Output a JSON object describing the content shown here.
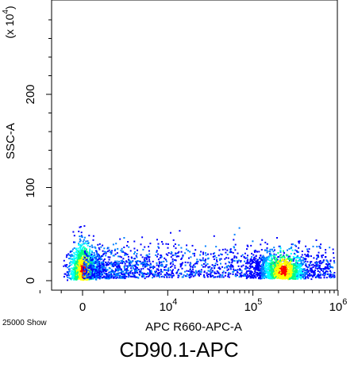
{
  "chart_data": {
    "type": "scatter",
    "subtype": "flow-cytometry-density-dot-plot",
    "title": "CD90.1-APC",
    "xlabel": "APC R660-APC-A",
    "ylabel": "SSC-A",
    "y_multiplier_label": "(x 10^4)",
    "event_count_label": "25000 Show",
    "x_scale": "biexponential",
    "x_ticks": [
      "0",
      "10^4",
      "10^5",
      "10^6"
    ],
    "y_ticks": [
      "0",
      "100",
      "200"
    ],
    "ylim": [
      0,
      300
    ],
    "populations": [
      {
        "name": "",
        "x_range": [
          "0",
          "10^4"
        ],
        "x_center": "0",
        "y_center_x10e4": 15,
        "y_range_x10e4": [
          0,
          60
        ],
        "density": "high"
      },
      {
        "name": "",
        "x_range": [
          "10^5",
          "10^6"
        ],
        "x_center": "2x10^5",
        "y_center_x10e4": 15,
        "y_range_x10e4": [
          0,
          55
        ],
        "density": "high"
      }
    ],
    "grid": false,
    "colors": {
      "low": "#0000ff",
      "mid": "#00ffff",
      "high": "#ffff00",
      "peak": "#ff0000"
    }
  }
}
